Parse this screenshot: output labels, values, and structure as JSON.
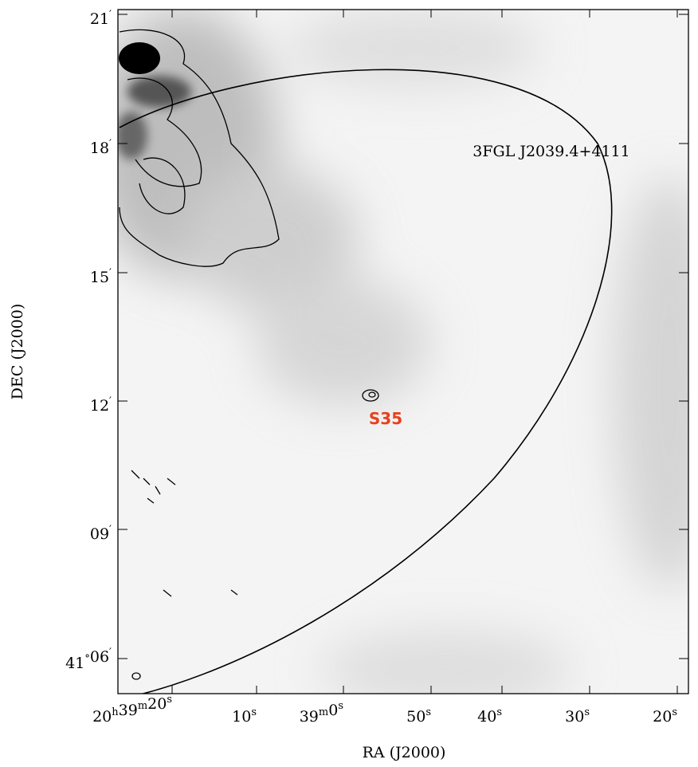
{
  "axes": {
    "x_label": "RA (J2000)",
    "y_label": "DEC (J2000)",
    "x_ticks": [
      [
        [
          "20",
          "h"
        ],
        [
          "39",
          "m"
        ],
        [
          "20",
          "s"
        ]
      ],
      [
        [
          "10",
          "s"
        ]
      ],
      [
        [
          "39",
          "m"
        ],
        [
          "0",
          "s"
        ]
      ],
      [
        [
          "50",
          "s"
        ]
      ],
      [
        [
          "40",
          "s"
        ]
      ],
      [
        [
          "30",
          "s"
        ]
      ],
      [
        [
          "20",
          "s"
        ]
      ]
    ],
    "y_ticks": [
      [
        [
          "21",
          "′"
        ]
      ],
      [
        [
          "18",
          "′"
        ]
      ],
      [
        [
          "15",
          "′"
        ]
      ],
      [
        [
          "12",
          "′"
        ]
      ],
      [
        [
          "09",
          "′"
        ]
      ],
      [
        [
          "41",
          "°"
        ],
        [
          "06",
          "′"
        ]
      ]
    ]
  },
  "annotations": {
    "source_label": "3FGL J2039.4+4111",
    "marker_label": "S35"
  }
}
